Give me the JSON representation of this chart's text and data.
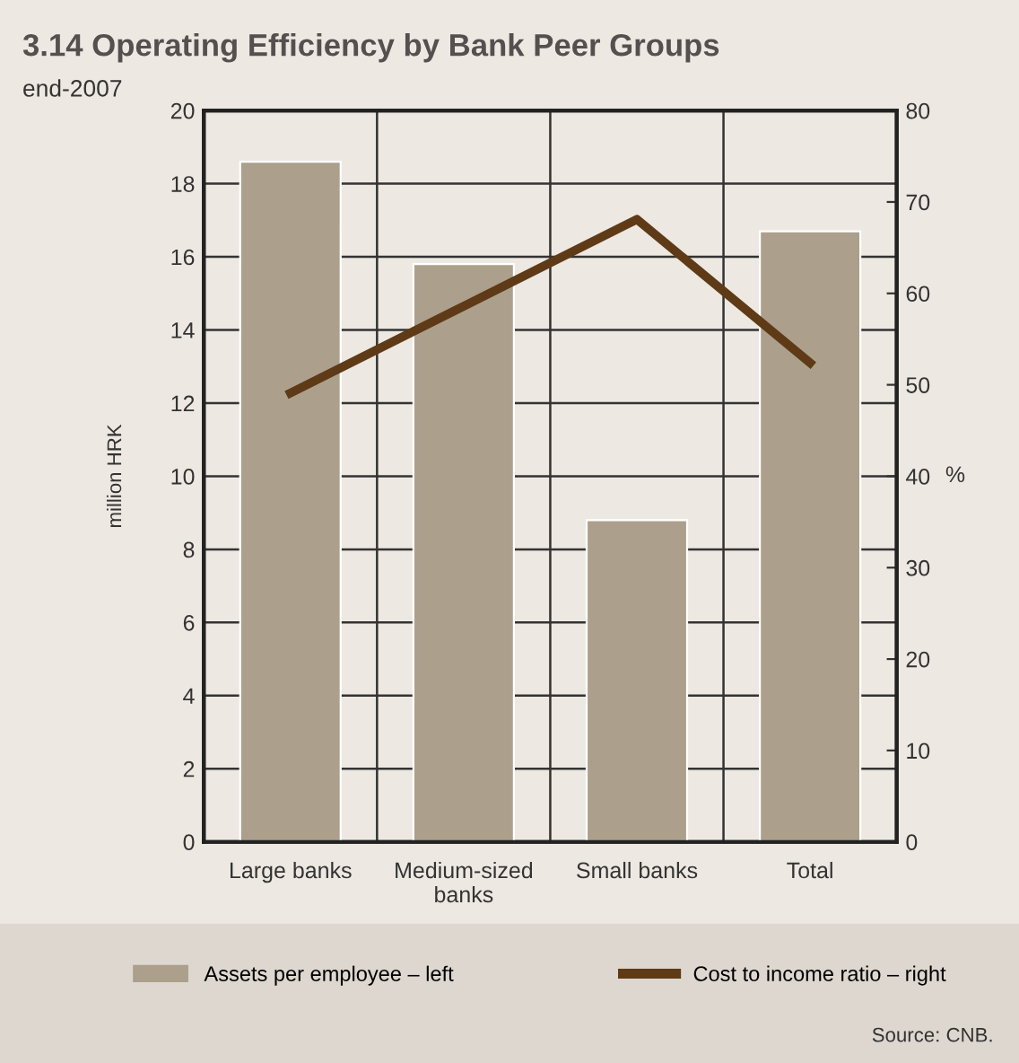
{
  "chart_data": {
    "type": "bar",
    "title": "3.14 Operating Efficiency by Bank Peer Groups",
    "subtitle": "end-2007",
    "ylabel": "million HRK",
    "y2label": "%",
    "categories": [
      "Large banks",
      "Medium-sized\nbanks",
      "Small banks",
      "Total"
    ],
    "series": [
      {
        "name": "Assets per employee – left",
        "color": "#aca08c",
        "values": [
          18.6,
          15.8,
          8.8,
          16.7
        ]
      },
      {
        "name": "Cost to income ratio – right",
        "type": "line",
        "axis": "y2",
        "color": "#5e3a17",
        "values": [
          49.1,
          58.6,
          68.1,
          52.4
        ]
      }
    ],
    "ylim": [
      0,
      20
    ],
    "yticks": [
      0,
      2,
      4,
      6,
      8,
      10,
      12,
      14,
      16,
      18,
      20
    ],
    "y2lim": [
      0,
      80
    ],
    "y2ticks": [
      0,
      10,
      20,
      30,
      40,
      50,
      60,
      70,
      80
    ],
    "grid": true,
    "legend": "bottom",
    "marker": "none",
    "line_style": "solid",
    "annotations": [
      "Source: CNB."
    ]
  }
}
